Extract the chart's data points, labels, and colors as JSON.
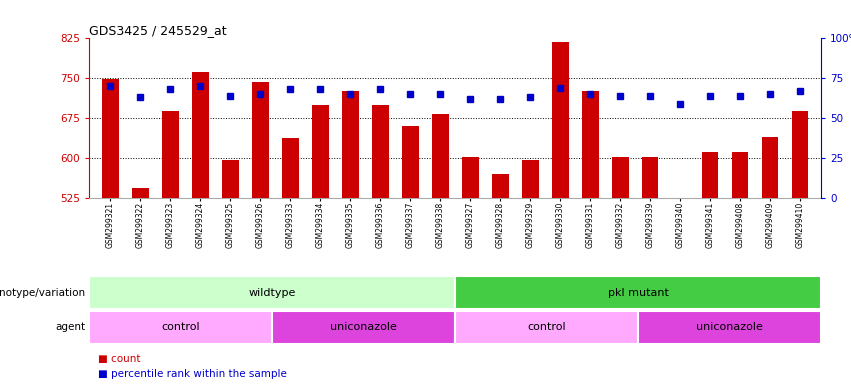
{
  "title": "GDS3425 / 245529_at",
  "samples": [
    "GSM299321",
    "GSM299322",
    "GSM299323",
    "GSM299324",
    "GSM299325",
    "GSM299326",
    "GSM299333",
    "GSM299334",
    "GSM299335",
    "GSM299336",
    "GSM299337",
    "GSM299338",
    "GSM299327",
    "GSM299328",
    "GSM299329",
    "GSM299330",
    "GSM299331",
    "GSM299332",
    "GSM299339",
    "GSM299340",
    "GSM299341",
    "GSM299408",
    "GSM299409",
    "GSM299410"
  ],
  "counts": [
    748,
    543,
    688,
    762,
    596,
    743,
    637,
    700,
    726,
    700,
    661,
    683,
    602,
    570,
    596,
    818,
    726,
    602,
    601,
    524,
    611,
    611,
    640,
    688
  ],
  "percentile_ranks": [
    70,
    63,
    68,
    70,
    64,
    65,
    68,
    68,
    65,
    68,
    65,
    65,
    62,
    62,
    63,
    69,
    65,
    64,
    64,
    59,
    64,
    64,
    65,
    67
  ],
  "ymin": 525,
  "ymax": 825,
  "yticks": [
    525,
    600,
    675,
    750,
    825
  ],
  "right_yticks": [
    0,
    25,
    50,
    75,
    100
  ],
  "bar_color": "#cc0000",
  "dot_color": "#0000cc",
  "bar_width": 0.55,
  "genotype_groups": [
    {
      "label": "wildtype",
      "start": 0,
      "end": 11,
      "color": "#ccffcc"
    },
    {
      "label": "pkl mutant",
      "start": 12,
      "end": 23,
      "color": "#44cc44"
    }
  ],
  "agent_groups": [
    {
      "label": "control",
      "start": 0,
      "end": 5,
      "color": "#ffaaff"
    },
    {
      "label": "uniconazole",
      "start": 6,
      "end": 11,
      "color": "#dd44dd"
    },
    {
      "label": "control",
      "start": 12,
      "end": 17,
      "color": "#ffaaff"
    },
    {
      "label": "uniconazole",
      "start": 18,
      "end": 23,
      "color": "#dd44dd"
    }
  ],
  "genotype_label": "genotype/variation",
  "agent_label": "agent",
  "legend_count": "count",
  "legend_percentile": "percentile rank within the sample",
  "background_color": "#ffffff",
  "gridline_color": "#000000",
  "gridline_ticks": [
    600,
    675,
    750
  ]
}
